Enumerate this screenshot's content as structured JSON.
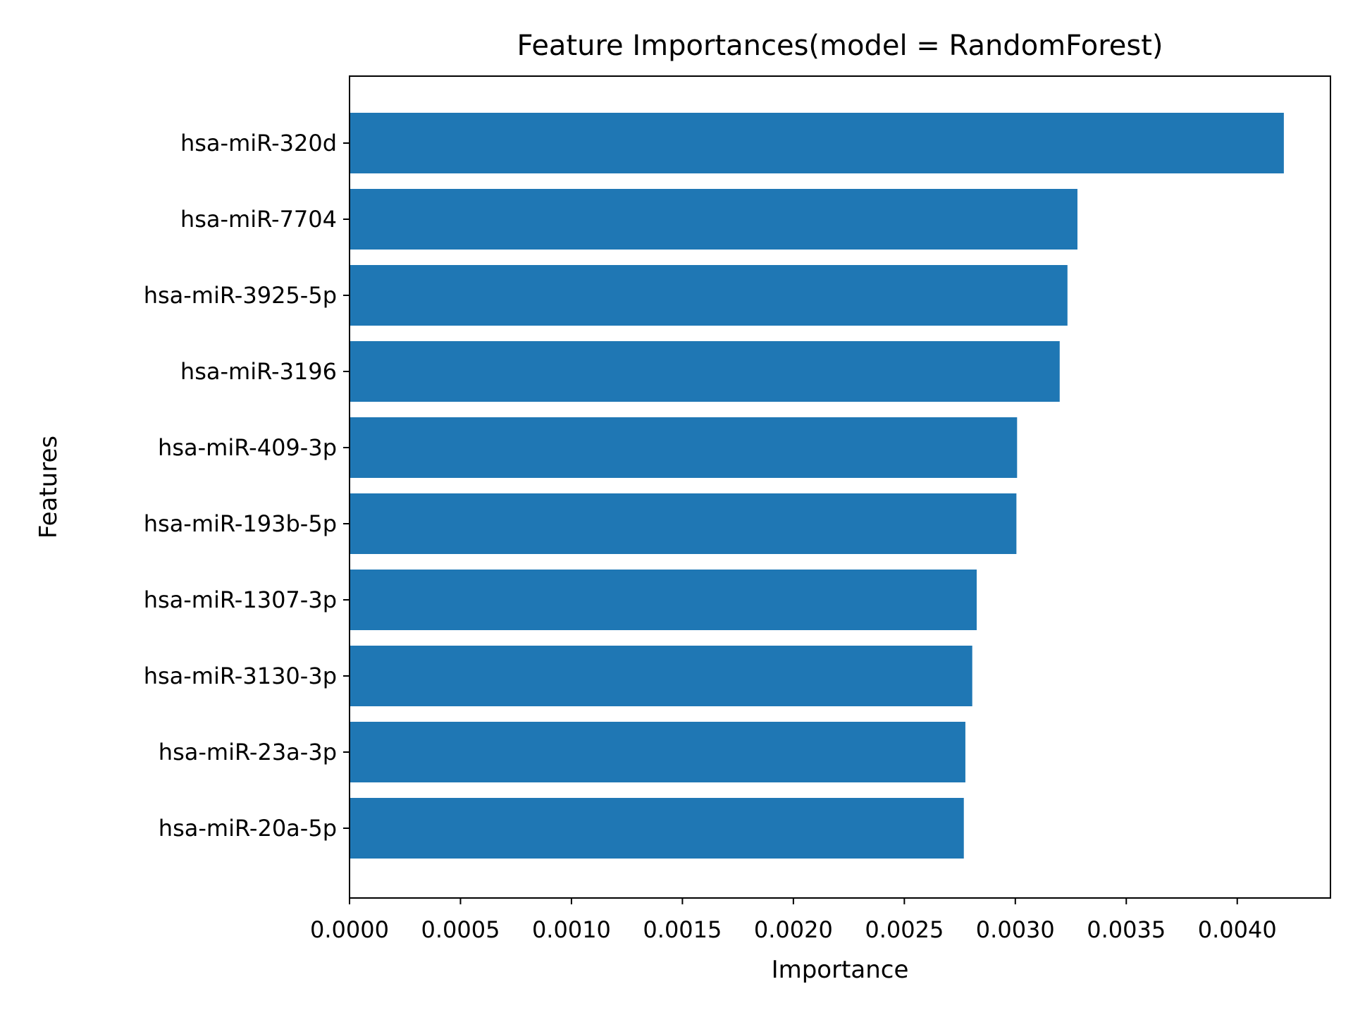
{
  "chart_data": {
    "type": "bar",
    "orientation": "horizontal",
    "title": "Feature Importances(model = RandomForest)",
    "xlabel": "Importance",
    "ylabel": "Features",
    "categories": [
      "hsa-miR-320d",
      "hsa-miR-7704",
      "hsa-miR-3925-5p",
      "hsa-miR-3196",
      "hsa-miR-409-3p",
      "hsa-miR-193b-5p",
      "hsa-miR-1307-3p",
      "hsa-miR-3130-3p",
      "hsa-miR-23a-3p",
      "hsa-miR-20a-5p"
    ],
    "values": [
      0.00421,
      0.00328,
      0.003235,
      0.0032,
      0.003008,
      0.003005,
      0.002826,
      0.002806,
      0.002775,
      0.002768
    ],
    "xlim": [
      0,
      0.00442
    ],
    "xticks": [
      0,
      0.0005,
      0.001,
      0.0015,
      0.002,
      0.0025,
      0.003,
      0.0035,
      0.004
    ],
    "xtick_labels": [
      "0.0000",
      "0.0005",
      "0.0010",
      "0.0015",
      "0.0020",
      "0.0025",
      "0.0030",
      "0.0035",
      "0.0040"
    ],
    "grid": false,
    "bar_color": "#1f77b4"
  }
}
